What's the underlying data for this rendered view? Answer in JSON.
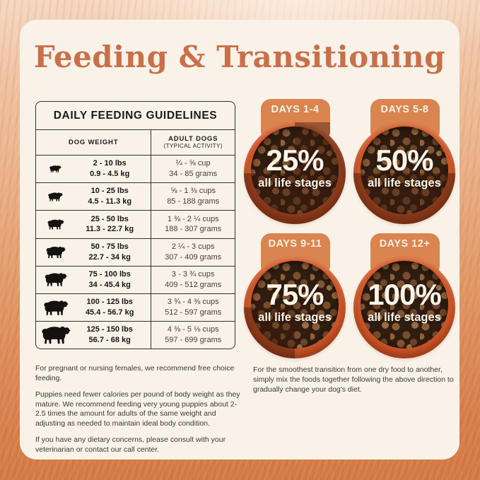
{
  "title": "Feeding & Transitioning",
  "colors": {
    "accent_orange": "#c9704a",
    "tab_orange": "#da8450",
    "bowl_orange": "#d2592b",
    "card_cream": "#f9f2e8",
    "background_orange": "#d47a45"
  },
  "table": {
    "title": "DAILY FEEDING GUIDELINES",
    "columns": {
      "col1": "DOG WEIGHT",
      "col2_line1": "ADULT DOGS",
      "col2_line2": "(TYPICAL ACTIVITY)"
    },
    "rows": [
      {
        "lbs": "2 - 10 lbs",
        "kg": "0.9 - 4.5 kg",
        "cups": "¼ - ⅝ cup",
        "grams": "34 - 85 grams"
      },
      {
        "lbs": "10 - 25 lbs",
        "kg": "4.5 - 11.3 kg",
        "cups": "⅝ - 1 ⅜ cups",
        "grams": "85 - 188 grams"
      },
      {
        "lbs": "25 - 50 lbs",
        "kg": "11.3 - 22.7 kg",
        "cups": "1 ⅜ - 2 ¼ cups",
        "grams": "188 - 307 grams"
      },
      {
        "lbs": "50 - 75 lbs",
        "kg": "22.7 - 34 kg",
        "cups": "2 ¼ - 3 cups",
        "grams": "307 - 409 grams"
      },
      {
        "lbs": "75 - 100 lbs",
        "kg": "34 - 45.4 kg",
        "cups": "3 - 3 ¾ cups",
        "grams": "409 - 512 grams"
      },
      {
        "lbs": "100 - 125 lbs",
        "kg": "45.4 - 56.7 kg",
        "cups": "3 ¾ - 4 ⅜ cups",
        "grams": "512 - 597 grams"
      },
      {
        "lbs": "125 - 150 lbs",
        "kg": "56.7 - 68 kg",
        "cups": "4 ⅜ - 5 ⅛ cups",
        "grams": "597 - 699 grams"
      }
    ]
  },
  "transition": {
    "stages": [
      {
        "days": "DAYS 1-4",
        "percent": "25%",
        "value": 25,
        "caption": "all life stages"
      },
      {
        "days": "DAYS 5-8",
        "percent": "50%",
        "value": 50,
        "caption": "all life stages"
      },
      {
        "days": "DAYS 9-11",
        "percent": "75%",
        "value": 75,
        "caption": "all life stages"
      },
      {
        "days": "DAYS 12+",
        "percent": "100%",
        "value": 100,
        "caption": "all life stages"
      }
    ]
  },
  "notes_left": [
    "For pregnant or nursing females, we recommend free choice feeding.",
    "Puppies need fewer calories per pound of body weight as they mature. We recommend feeding very young puppies about 2-2.5 times the amount for adults of the same weight and adjusting as needed to maintain ideal body condition.",
    "If you have any dietary concerns, please consult with your veterinarian or contact our call center."
  ],
  "notes_right": "For the smoothest transition from one dry food to another, simply mix the foods together following the above direction to gradually change your dog's diet."
}
